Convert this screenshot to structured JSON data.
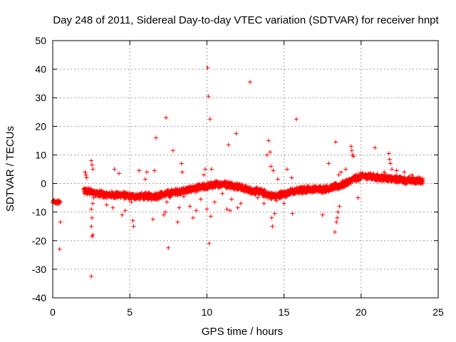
{
  "chart_data": {
    "type": "scatter",
    "title": "Day 248 of 2011, Sidereal Day-to-day VTEC variation (SDTVAR) for receiver hnpt",
    "xlabel": "GPS time / hours",
    "ylabel": "SDTVAR / TECUs",
    "xlim": [
      0,
      25
    ],
    "ylim": [
      -40,
      50
    ],
    "xticks": [
      0,
      5,
      10,
      15,
      20,
      25
    ],
    "yticks": [
      -40,
      -30,
      -20,
      -10,
      0,
      10,
      20,
      30,
      40,
      50
    ],
    "grid": true,
    "marker": "+",
    "color": "#ff0000",
    "baseline": [
      [
        0.0,
        -6.5
      ],
      [
        0.5,
        -6.0
      ],
      [
        2.0,
        -2.5
      ],
      [
        2.5,
        -3.0
      ],
      [
        3.0,
        -3.5
      ],
      [
        3.5,
        -4.0
      ],
      [
        4.0,
        -4.0
      ],
      [
        4.5,
        -4.0
      ],
      [
        5.0,
        -4.5
      ],
      [
        5.5,
        -4.5
      ],
      [
        6.0,
        -4.5
      ],
      [
        6.5,
        -4.5
      ],
      [
        7.0,
        -4.0
      ],
      [
        7.5,
        -3.5
      ],
      [
        8.0,
        -3.0
      ],
      [
        8.5,
        -2.5
      ],
      [
        9.0,
        -2.0
      ],
      [
        9.5,
        -1.5
      ],
      [
        10.0,
        -1.0
      ],
      [
        10.5,
        -0.5
      ],
      [
        11.0,
        0.0
      ],
      [
        11.5,
        -0.5
      ],
      [
        12.0,
        -1.0
      ],
      [
        12.5,
        -2.0
      ],
      [
        13.0,
        -2.5
      ],
      [
        13.5,
        -3.0
      ],
      [
        14.0,
        -4.0
      ],
      [
        14.5,
        -4.5
      ],
      [
        15.0,
        -3.5
      ],
      [
        15.5,
        -3.0
      ],
      [
        16.0,
        -2.5
      ],
      [
        16.5,
        -2.0
      ],
      [
        17.0,
        -2.0
      ],
      [
        17.5,
        -2.0
      ],
      [
        18.0,
        -1.5
      ],
      [
        18.5,
        -1.0
      ],
      [
        19.0,
        0.0
      ],
      [
        19.5,
        1.5
      ],
      [
        20.0,
        2.5
      ],
      [
        20.5,
        2.5
      ],
      [
        21.0,
        2.0
      ],
      [
        21.5,
        2.0
      ],
      [
        22.0,
        1.5
      ],
      [
        22.5,
        1.5
      ],
      [
        23.0,
        1.0
      ],
      [
        23.5,
        1.0
      ],
      [
        24.0,
        1.0
      ]
    ],
    "points": [
      [
        0.05,
        -6.5
      ],
      [
        0.15,
        -6.8
      ],
      [
        0.25,
        -6.2
      ],
      [
        0.35,
        -5.8
      ],
      [
        0.45,
        -6.0
      ],
      [
        0.5,
        -13.5
      ],
      [
        0.45,
        -23.0
      ],
      [
        2.05,
        -3.5
      ],
      [
        2.1,
        4.0
      ],
      [
        2.15,
        3.0
      ],
      [
        2.2,
        2.0
      ],
      [
        2.5,
        8.0
      ],
      [
        2.55,
        6.5
      ],
      [
        2.6,
        5.0
      ],
      [
        2.5,
        -9.0
      ],
      [
        2.55,
        -12.0
      ],
      [
        2.5,
        -15.0
      ],
      [
        2.6,
        -18.0
      ],
      [
        2.55,
        -18.5
      ],
      [
        2.5,
        -32.5
      ],
      [
        2.65,
        -5.0
      ],
      [
        2.6,
        -7.0
      ],
      [
        3.5,
        -7.5
      ],
      [
        3.9,
        -8.5
      ],
      [
        4.0,
        5.0
      ],
      [
        4.3,
        3.5
      ],
      [
        4.5,
        -11.0
      ],
      [
        4.7,
        -9.5
      ],
      [
        5.1,
        -6.5
      ],
      [
        5.2,
        -13.0
      ],
      [
        5.25,
        -15.0
      ],
      [
        5.6,
        4.5
      ],
      [
        6.0,
        1.5
      ],
      [
        6.1,
        4.0
      ],
      [
        6.5,
        -12.5
      ],
      [
        6.6,
        4.5
      ],
      [
        6.7,
        16.0
      ],
      [
        6.8,
        -5.5
      ],
      [
        7.2,
        -11.0
      ],
      [
        7.3,
        -10.0
      ],
      [
        7.35,
        23.0
      ],
      [
        7.4,
        -6.5
      ],
      [
        7.5,
        -22.5
      ],
      [
        7.6,
        -5.0
      ],
      [
        7.8,
        11.5
      ],
      [
        8.1,
        -13.5
      ],
      [
        8.2,
        -8.5
      ],
      [
        8.35,
        7.0
      ],
      [
        8.4,
        4.0
      ],
      [
        8.5,
        -4.5
      ],
      [
        8.9,
        -8.0
      ],
      [
        9.1,
        -12.0
      ],
      [
        9.3,
        -9.5
      ],
      [
        9.6,
        -5.5
      ],
      [
        9.8,
        3.0
      ],
      [
        9.9,
        5.0
      ],
      [
        10.0,
        -9.0
      ],
      [
        10.05,
        40.5
      ],
      [
        10.1,
        30.5
      ],
      [
        10.15,
        -21.0
      ],
      [
        10.2,
        22.5
      ],
      [
        10.25,
        -11.5
      ],
      [
        10.3,
        5.0
      ],
      [
        10.5,
        -6.5
      ],
      [
        11.0,
        -3.5
      ],
      [
        11.3,
        -9.0
      ],
      [
        11.4,
        13.5
      ],
      [
        11.5,
        -9.5
      ],
      [
        11.6,
        -5.5
      ],
      [
        11.9,
        17.5
      ],
      [
        12.0,
        -8.5
      ],
      [
        12.2,
        -7.0
      ],
      [
        12.8,
        35.5
      ],
      [
        13.3,
        -5.0
      ],
      [
        13.7,
        -7.0
      ],
      [
        13.9,
        10.0
      ],
      [
        14.0,
        15.0
      ],
      [
        14.1,
        11.0
      ],
      [
        14.15,
        6.0
      ],
      [
        14.2,
        -12.0
      ],
      [
        14.25,
        -15.0
      ],
      [
        14.3,
        4.5
      ],
      [
        14.4,
        -10.5
      ],
      [
        14.5,
        -6.0
      ],
      [
        14.6,
        1.5
      ],
      [
        15.0,
        -7.0
      ],
      [
        15.2,
        5.0
      ],
      [
        15.5,
        2.0
      ],
      [
        15.55,
        -10.5
      ],
      [
        15.8,
        22.5
      ],
      [
        16.5,
        -1.5
      ],
      [
        17.0,
        -1.5
      ],
      [
        17.5,
        -11.0
      ],
      [
        17.9,
        7.0
      ],
      [
        18.3,
        -17.0
      ],
      [
        18.35,
        14.5
      ],
      [
        18.4,
        -13.5
      ],
      [
        18.45,
        -12.0
      ],
      [
        18.5,
        -10.0
      ],
      [
        18.55,
        3.0
      ],
      [
        18.6,
        -8.0
      ],
      [
        18.7,
        4.0
      ],
      [
        19.0,
        5.0
      ],
      [
        19.35,
        13.0
      ],
      [
        19.4,
        11.5
      ],
      [
        19.45,
        10.0
      ],
      [
        19.5,
        9.5
      ],
      [
        19.8,
        -5.0
      ],
      [
        20.5,
        3.5
      ],
      [
        20.9,
        12.5
      ],
      [
        21.5,
        4.0
      ],
      [
        21.8,
        10.5
      ],
      [
        21.85,
        8.5
      ],
      [
        21.9,
        7.0
      ],
      [
        22.0,
        5.0
      ],
      [
        22.3,
        4.5
      ],
      [
        22.8,
        4.0
      ],
      [
        23.3,
        3.0
      ],
      [
        23.8,
        1.5
      ]
    ]
  }
}
